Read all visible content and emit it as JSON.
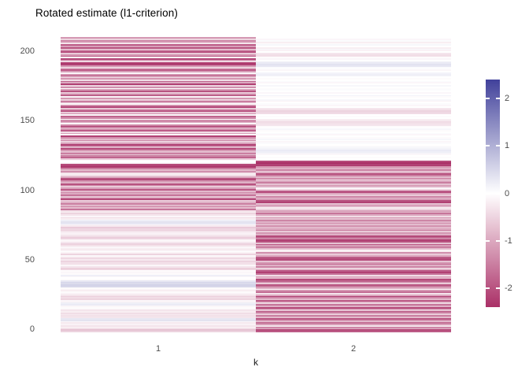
{
  "title": "Rotated estimate (l1-criterion)",
  "axes": {
    "x": {
      "label": "k",
      "tick_labels": [
        "1",
        "2"
      ]
    },
    "y": {
      "tick_labels": [
        "0",
        "50",
        "100",
        "150",
        "200"
      ],
      "tick_values": [
        0,
        50,
        100,
        150,
        200
      ]
    }
  },
  "legend": {
    "tick_labels": [
      "2",
      "1",
      "0",
      "-1",
      "-2"
    ],
    "tick_values": [
      2,
      1,
      0,
      -1,
      -2
    ]
  },
  "colors": {
    "negative": "#aa3067",
    "zero": "#ffffff",
    "positive": "#41419b",
    "axis_text": "#4d4d4d",
    "title_text": "#000000"
  },
  "chart_data": {
    "type": "heatmap",
    "title": "Rotated estimate (l1-criterion)",
    "xlabel": "k",
    "ylabel": "",
    "x_categories": [
      "1",
      "2"
    ],
    "n_rows": 210,
    "y_axis_ticks": [
      0,
      50,
      100,
      150,
      200
    ],
    "value_domain": [
      -2.4,
      2.4
    ],
    "legend_ticks": [
      2,
      1,
      0,
      -1,
      -2
    ],
    "legend_position": "right",
    "grid": false,
    "series": [
      {
        "name": "k=1",
        "values": [
          -0.5,
          -0.7,
          -0.45,
          -0.2,
          -0.3,
          -0.15,
          -0.25,
          -0.1,
          0.35,
          0.3,
          -0.3,
          -0.35,
          -0.25,
          -0.4,
          -0.2,
          -0.3,
          -0.1,
          -0.05,
          -0.1,
          0.25,
          0.2,
          -0.15,
          -0.1,
          -0.5,
          -0.4,
          -0.55,
          -0.3,
          -0.15,
          -0.05,
          -0.2,
          -0.1,
          -0.05,
          0.5,
          0.55,
          0.45,
          0.5,
          0.3,
          -0.05,
          0,
          -0.1,
          0.2,
          -0.05,
          -0.1,
          -0.05,
          -0.45,
          -0.55,
          -0.3,
          -0.1,
          -0.4,
          -0.35,
          -0.5,
          -0.25,
          -0.45,
          -0.2,
          -0.1,
          -0.5,
          -0.15,
          -0.05,
          -0.3,
          -0.2,
          -0.1,
          -0.35,
          -0.55,
          -0.45,
          -0.15,
          -0.1,
          -0.5,
          -0.6,
          -0.4,
          -0.2,
          -0.15,
          -0.3,
          -0.55,
          -0.45,
          -0.6,
          -0.25,
          -0.1,
          0.3,
          0.35,
          0.2,
          -0.2,
          -0.4,
          -0.1,
          -0.3,
          -0.5,
          -0.2,
          -0.35,
          -1.6,
          -0.8,
          -1.2,
          -0.5,
          -1.5,
          -0.9,
          -0.6,
          -2.1,
          -1.2,
          -0.7,
          -1.6,
          -1.0,
          -1.3,
          -0.8,
          -1.9,
          -1.1,
          -0.6,
          -1.4,
          -2.0,
          -0.9,
          -1.2,
          -2.2,
          -2.0,
          -1.0,
          -0.4,
          -0.2,
          -0.5,
          -1.3,
          -0.8,
          -1.5,
          -2.3,
          -2.2,
          -2.1,
          -0.1,
          0,
          -0.1,
          -0.6,
          -1.8,
          -1.4,
          -1.0,
          -1.9,
          -0.7,
          -1.2,
          -2.1,
          -0.9,
          -1.5,
          -2.2,
          -1.1,
          -0.5,
          -1.3,
          -0.8,
          -1.3,
          -2.2,
          -0.1,
          -1.1,
          -0.4,
          -1.9,
          -1.2,
          -0.6,
          -2.0,
          -1.4,
          0,
          -1.0,
          -2.1,
          -0.5,
          -1.3,
          -1.8,
          -0.1,
          -1.2,
          -0.6,
          -2.0,
          -1.1,
          -0.4,
          -2.2,
          -1.3,
          0,
          -1.0,
          -1.9,
          -0.5,
          -1.2,
          -0.1,
          -2.1,
          -1.4,
          -0.6,
          -2.0,
          -1.1,
          0,
          -1.3,
          -0.5,
          -2.2,
          -1.0,
          -1.8,
          -0.4,
          -1.2,
          -0.6,
          -2.0,
          -1.3,
          -0.1,
          -1.1,
          -1.9,
          -1.4,
          -0.5,
          -1.2,
          -2.2,
          -2.3,
          0,
          -1.0,
          -2.2,
          -0.1,
          -1.8,
          -1.2,
          -0.6,
          -2.1,
          -1.3,
          -0.4,
          -2.0,
          -1.1,
          -1.9,
          0,
          -0.8,
          -1.4,
          -0.5,
          -1.2
        ]
      },
      {
        "name": "k=2",
        "values": [
          -1.9,
          -2.1,
          -0.9,
          -1.4,
          -0.3,
          -1.1,
          -1.7,
          -0.6,
          -1.2,
          -2.0,
          -0.8,
          -1.5,
          -0.4,
          -1.0,
          -1.8,
          -0.7,
          -1.3,
          -2.1,
          -0.9,
          -1.6,
          -0.5,
          -1.1,
          -1.9,
          -0.8,
          -1.4,
          -2.2,
          -1.0,
          -0.3,
          -1.7,
          -1.2,
          -0.1,
          -0.9,
          -1.5,
          -2.0,
          -0.6,
          -1.3,
          -1.8,
          -2.1,
          -0.8,
          -1.1,
          -0.4,
          -1.6,
          -2.2,
          -1.9,
          -1.0,
          -0.5,
          -1.4,
          -0.9,
          -1.7,
          -1.2,
          -0.7,
          -2.1,
          -2.0,
          -1.8,
          -1.0,
          -0.6,
          -1.3,
          -0.2,
          -0.1,
          -0.8,
          -1.5,
          -1.1,
          -1.9,
          -0.7,
          -2.0,
          -2.2,
          -1.4,
          -1.8,
          -2.1,
          -0.9,
          -1.2,
          -0.6,
          -1.5,
          -1.0,
          -0.8,
          -1.3,
          -0.5,
          -1.1,
          -0.9,
          -1.4,
          -0.7,
          -1.2,
          -0.4,
          -1.0,
          -1.6,
          -0.8,
          -1.1,
          -0.5,
          -0.2,
          -0.9,
          -1.3,
          -0.7,
          -2.2,
          -2.0,
          -1.1,
          -0.8,
          -1.4,
          -0.6,
          -1.0,
          -2.1,
          -1.9,
          -0.5,
          -0.1,
          -0.9,
          -1.2,
          -0.7,
          -1.5,
          -1.0,
          -0.4,
          -1.3,
          -0.8,
          -1.5,
          -2.0,
          -1.1,
          -0.7,
          -1.4,
          -0.9,
          -1.2,
          -2.3,
          -2.2,
          -2.4,
          -2.1,
          -0.1,
          0,
          -0.05,
          0,
          -0.1,
          0.15,
          0.2,
          0.25,
          0.15,
          0.1,
          -0.05,
          0,
          0.05,
          -0.1,
          0,
          0.1,
          -0.05,
          0,
          -0.1,
          0.05,
          0,
          -0.05,
          0.1,
          0,
          -0.05,
          -0.3,
          -0.35,
          -0.4,
          -0.3,
          -0.2,
          0,
          -0.05,
          0,
          -0.4,
          -0.45,
          -0.5,
          -0.35,
          -0.25,
          0,
          -0.1,
          0.05,
          0,
          -0.15,
          0.1,
          0,
          -0.05,
          0.15,
          0,
          -0.1,
          0,
          0.05,
          -0.05,
          0,
          0.1,
          0,
          -0.1,
          0.05,
          0,
          -0.05,
          0,
          0.15,
          0.2,
          0.15,
          0,
          -0.1,
          0,
          0.05,
          0.3,
          0.35,
          0.25,
          0.2,
          0,
          -0.1,
          -0.05,
          -0.35,
          -0.4,
          -0.3,
          0,
          -0.15,
          0.1,
          -0.2,
          0,
          0.1,
          -0.05,
          -0.2,
          0.05,
          -0.1,
          0
        ]
      }
    ]
  }
}
